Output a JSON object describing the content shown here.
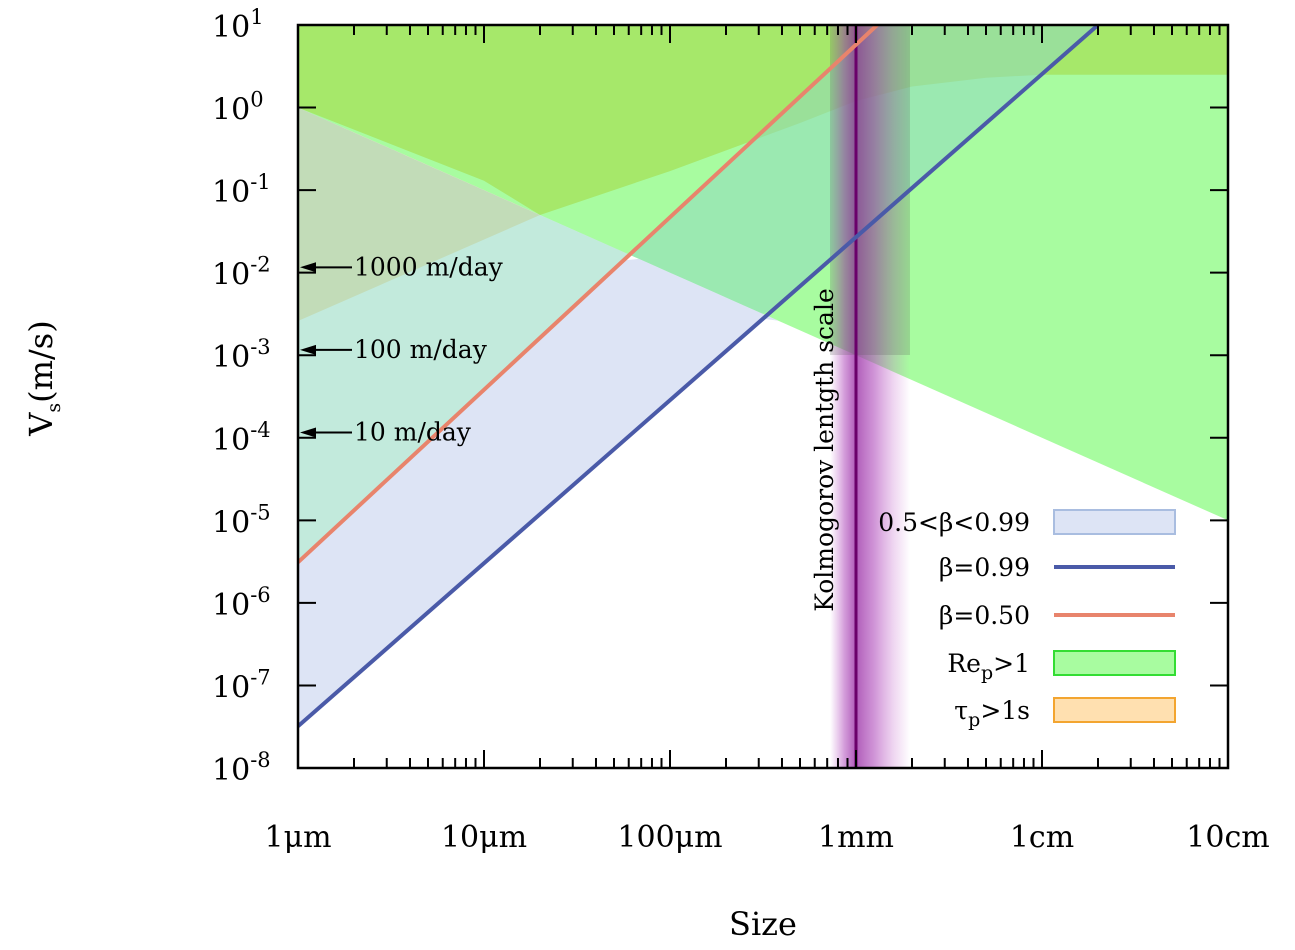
{
  "chart_data": {
    "type": "area",
    "xlabel": "Size",
    "ylabel": {
      "main": "V",
      "sub": "s",
      "rest": "(m/s)"
    },
    "x_scale": "log",
    "y_scale": "log",
    "xlim": [
      1e-06,
      0.1
    ],
    "ylim": [
      1e-08,
      10
    ],
    "x_ticks": [
      {
        "value": 1e-06,
        "label": "1μm"
      },
      {
        "value": 1e-05,
        "label": "10μm"
      },
      {
        "value": 0.0001,
        "label": "100μm"
      },
      {
        "value": 0.001,
        "label": "1mm"
      },
      {
        "value": 0.01,
        "label": "1cm"
      },
      {
        "value": 0.1,
        "label": "10cm"
      }
    ],
    "y_ticks": [
      {
        "value": 1e-08,
        "base": "10",
        "exp": "-8"
      },
      {
        "value": 1e-07,
        "base": "10",
        "exp": "-7"
      },
      {
        "value": 1e-06,
        "base": "10",
        "exp": "-6"
      },
      {
        "value": 1e-05,
        "base": "10",
        "exp": "-5"
      },
      {
        "value": 0.0001,
        "base": "10",
        "exp": "-4"
      },
      {
        "value": 0.001,
        "base": "10",
        "exp": "-3"
      },
      {
        "value": 0.01,
        "base": "10",
        "exp": "-2"
      },
      {
        "value": 0.1,
        "base": "10",
        "exp": "-1"
      },
      {
        "value": 1,
        "base": "10",
        "exp": "0"
      },
      {
        "value": 10,
        "base": "10",
        "exp": "1"
      }
    ],
    "series": [
      {
        "name": "β=0.99",
        "kind": "line",
        "color": "#4a5aa8",
        "x": [
          1e-06,
          0.02
        ],
        "y": [
          3.2e-08,
          10
        ]
      },
      {
        "name": "β=0.50",
        "kind": "line",
        "color": "#e8846c",
        "x": [
          1e-06,
          0.0013
        ],
        "y": [
          3.1e-06,
          10
        ]
      },
      {
        "name": "0.5<β<0.99",
        "kind": "band",
        "color": "#dde4f5",
        "border": "#a9bde0"
      },
      {
        "name": "Re",
        "name_sub": "p",
        "name_rest": ">1",
        "kind": "region",
        "color": "#a8fca0",
        "border": "#33dd33",
        "lower_x": [
          1e-06,
          0.1
        ],
        "lower_y": [
          1,
          1e-05
        ]
      },
      {
        "name": "τ",
        "name_sub": "p",
        "name_rest": ">1s",
        "kind": "region",
        "color": "#ffe0b0",
        "border": "#f3a530",
        "upper_x": [
          1e-06,
          2e-05
        ],
        "upper_y": [
          1,
          0.05
        ],
        "lower_x": [
          1e-06,
          2e-05
        ],
        "lower_y": [
          0.0026,
          0.05
        ]
      },
      {
        "name": "upper-green",
        "kind": "region",
        "color": "#a6e86a",
        "x": [
          1e-06,
          1e-05,
          2e-05,
          0.0001,
          0.0005,
          0.001,
          0.002,
          0.005,
          0.01,
          0.1
        ],
        "y": [
          1,
          0.13,
          0.05,
          0.17,
          0.65,
          1.2,
          1.8,
          2.3,
          2.5,
          2.5
        ]
      }
    ],
    "annotations": [
      {
        "text": "1000 m/day",
        "y": 0.0116
      },
      {
        "text": "100 m/day",
        "y": 0.00116
      },
      {
        "text": "10 m/day",
        "y": 0.000116
      }
    ],
    "vertical_marker": {
      "x": 0.001,
      "label": "Kolmogorov lentgth scale",
      "color": "#6a006a"
    },
    "legend_position": "bottom-right",
    "grid": false
  }
}
